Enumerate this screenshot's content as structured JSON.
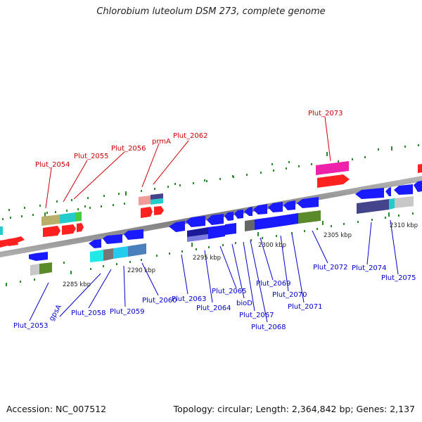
{
  "title": "Chlorobium luteolum DSM 273, complete genome",
  "accession": "Accession: NC_007512",
  "summary": "Topology: circular; Length: 2,364,842 bp; Genes: 2,137",
  "scale_labels": [
    "2285 kbp",
    "2290 kbp",
    "2295 kbp",
    "2300 kbp",
    "2305 kbp",
    "2310 kbp"
  ],
  "forward_labels": [
    "Plut_2054",
    "Plut_2055",
    "Plut_2056",
    "prmA",
    "Plut_2062",
    "Plut_2073"
  ],
  "reverse_labels": [
    "Plut_2053",
    "gpsA",
    "Plut_2058",
    "Plut_2059",
    "Plut_2060",
    "Plut_2063",
    "Plut_2064",
    "Plut_2065",
    "bioD",
    "Plut_2067",
    "Plut_2068",
    "Plut_2069",
    "Plut_2070",
    "Plut_2071",
    "Plut_2072",
    "Plut_2074",
    "Plut_2075"
  ],
  "colors": {
    "forward_label": "#cc0000",
    "reverse_label": "#0000cc",
    "forward_gene": "#ff2020",
    "reverse_gene": "#1a1aff",
    "backbone": "#808080",
    "tick": "#2a8a2a"
  }
}
